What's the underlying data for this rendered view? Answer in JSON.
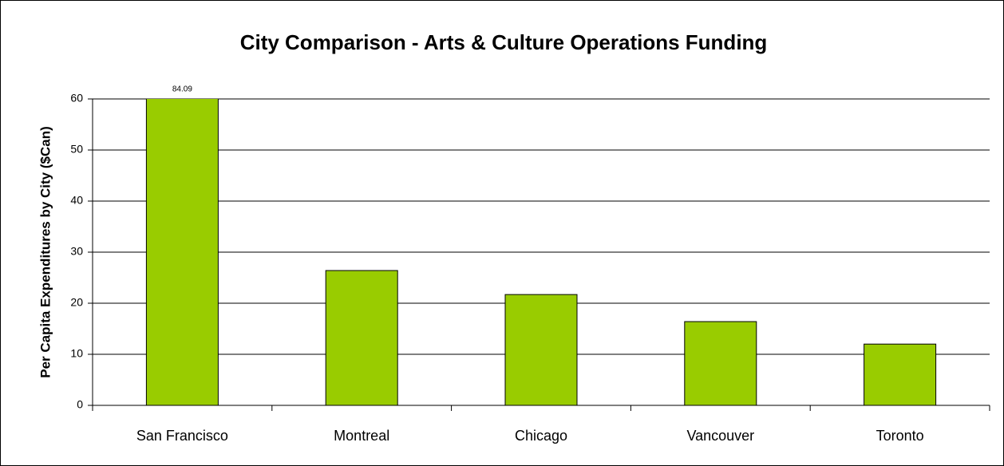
{
  "chart_data": {
    "type": "bar",
    "title": "City Comparison - Arts & Culture Operations Funding",
    "y_label": "Per Capita Expenditures by City ($Can)",
    "categories": [
      "San Francisco",
      "Montreal",
      "Chicago",
      "Vancouver",
      "Toronto"
    ],
    "values": [
      84.09,
      26.4,
      21.7,
      16.4,
      12.0
    ],
    "value_labels": [
      "84.09",
      null,
      null,
      null,
      null
    ],
    "color": "#99cc00",
    "ylim": [
      0,
      60
    ],
    "yticks": [
      0,
      10,
      20,
      30,
      40,
      50,
      60
    ],
    "grid": true
  }
}
